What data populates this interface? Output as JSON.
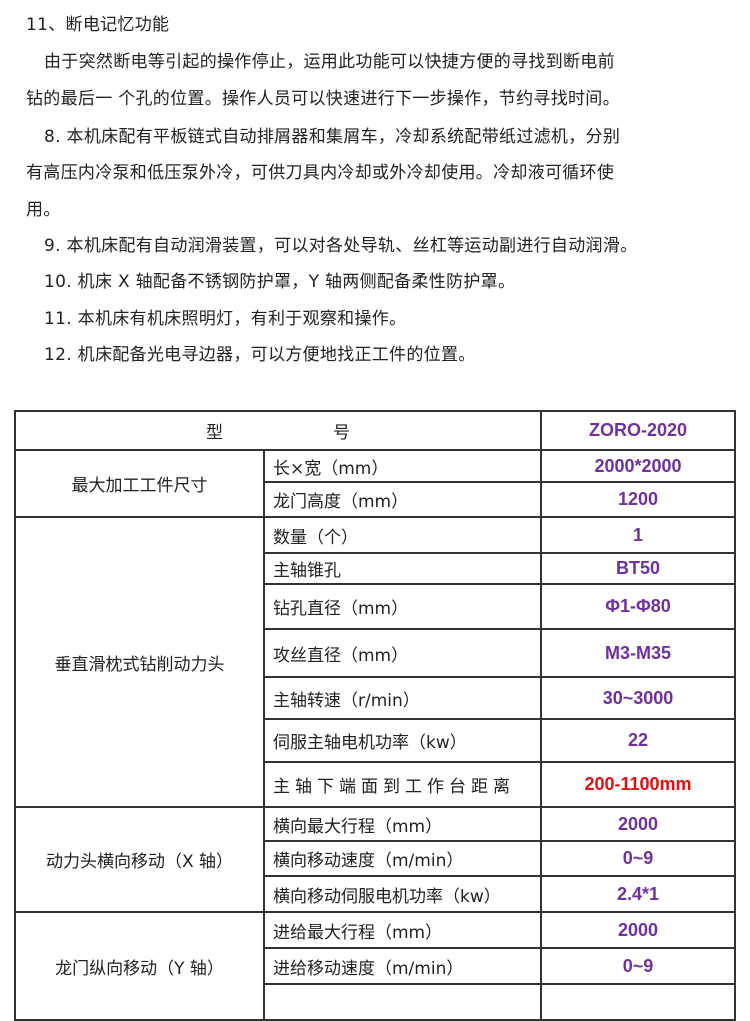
{
  "paragraphs": [
    "11、断电记忆功能",
    "由于突然断电等引起的操作停止，运用此功能可以快捷方便的寻找到断电前",
    "钻的最后一 个孔的位置。操作人员可以快速进行下一步操作，节约寻找时间。",
    "8. 本机床配有平板链式自动排屑器和集屑车，冷却系统配带纸过滤机，分别",
    "有高压内冷泵和低压泵外冷，可供刀具内冷却或外冷却使用。冷却液可循环使",
    "用。",
    "9. 本机床配有自动润滑装置，可以对各处导轨、丝杠等运动副进行自动润滑。",
    "10. 机床 X 轴配备不锈钢防护罩，Y 轴两侧配备柔性防护罩。",
    "11. 本机床有机床照明灯，有利于观察和操作。",
    "12. 机床配备光电寻边器，可以方便地找正工件的位置。"
  ],
  "table": {
    "header": {
      "label_a": "型",
      "label_b": "号",
      "model": "ZORO-2020"
    },
    "groups": [
      {
        "name": "最大加工工件尺寸",
        "rows": [
          [
            "长×宽（mm）",
            "2000*2000"
          ],
          [
            "龙门高度（mm）",
            "1200"
          ]
        ]
      },
      {
        "name": "垂直滑枕式钻削动力头",
        "rows": [
          [
            "数量（个）",
            "1"
          ],
          [
            "主轴锥孔",
            "BT50"
          ],
          [
            "钻孔直径（mm）",
            "Φ1-Φ80"
          ],
          [
            "攻丝直径（mm）",
            "M3-M35"
          ],
          [
            "主轴转速（r/min）",
            "30~3000"
          ],
          [
            "伺服主轴电机功率（kw）",
            "22"
          ],
          [
            "主轴下端面到工作台距离",
            "200-1100mm"
          ]
        ]
      },
      {
        "name": "动力头横向移动（X 轴）",
        "rows": [
          [
            "横向最大行程（mm）",
            "2000"
          ],
          [
            "横向移动速度（m/min）",
            "0~9"
          ],
          [
            "横向移动伺服电机功率（kw）",
            "2.4*1"
          ]
        ]
      },
      {
        "name": "龙门纵向移动（Y 轴）",
        "rows": [
          [
            "进给最大行程（mm）",
            "2000"
          ],
          [
            "进给移动速度（m/min）",
            "0~9"
          ]
        ]
      }
    ]
  },
  "colors": {
    "value": "#7030a0",
    "highlight": "#e01010"
  }
}
